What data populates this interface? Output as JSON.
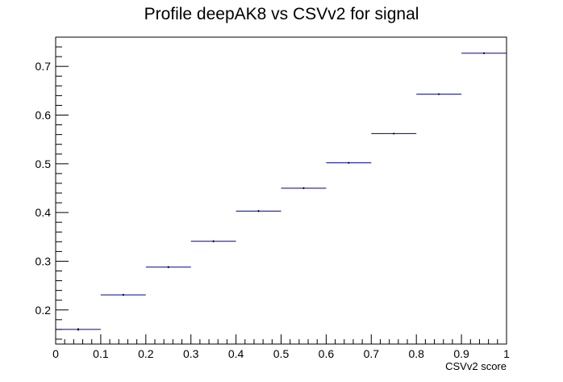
{
  "chart_data": {
    "type": "profile",
    "title": "Profile deepAK8 vs CSVv2 for signal",
    "xlabel": "CSVv2 score",
    "ylabel": "",
    "xlim": [
      0,
      1
    ],
    "ylim": [
      0.13,
      0.76
    ],
    "xticks": [
      "0",
      "0.1",
      "0.2",
      "0.3",
      "0.4",
      "0.5",
      "0.6",
      "0.7",
      "0.8",
      "0.9",
      "1"
    ],
    "yticks": [
      "0.2",
      "0.3",
      "0.4",
      "0.5",
      "0.6",
      "0.7"
    ],
    "bins": [
      {
        "x_low": 0.0,
        "x_high": 0.1,
        "y": 0.16,
        "err": 0.003
      },
      {
        "x_low": 0.1,
        "x_high": 0.2,
        "y": 0.231,
        "err": 0.002
      },
      {
        "x_low": 0.2,
        "x_high": 0.3,
        "y": 0.288,
        "err": 0.002
      },
      {
        "x_low": 0.3,
        "x_high": 0.4,
        "y": 0.341,
        "err": 0.002
      },
      {
        "x_low": 0.4,
        "x_high": 0.5,
        "y": 0.403,
        "err": 0.002
      },
      {
        "x_low": 0.5,
        "x_high": 0.6,
        "y": 0.45,
        "err": 0.001
      },
      {
        "x_low": 0.6,
        "x_high": 0.7,
        "y": 0.502,
        "err": 0.001
      },
      {
        "x_low": 0.7,
        "x_high": 0.8,
        "y": 0.562,
        "err": 0.001
      },
      {
        "x_low": 0.8,
        "x_high": 0.9,
        "y": 0.643,
        "err": 0.001
      },
      {
        "x_low": 0.9,
        "x_high": 1.0,
        "y": 0.727,
        "err": 0.001
      }
    ],
    "marker_color": "#000099"
  }
}
